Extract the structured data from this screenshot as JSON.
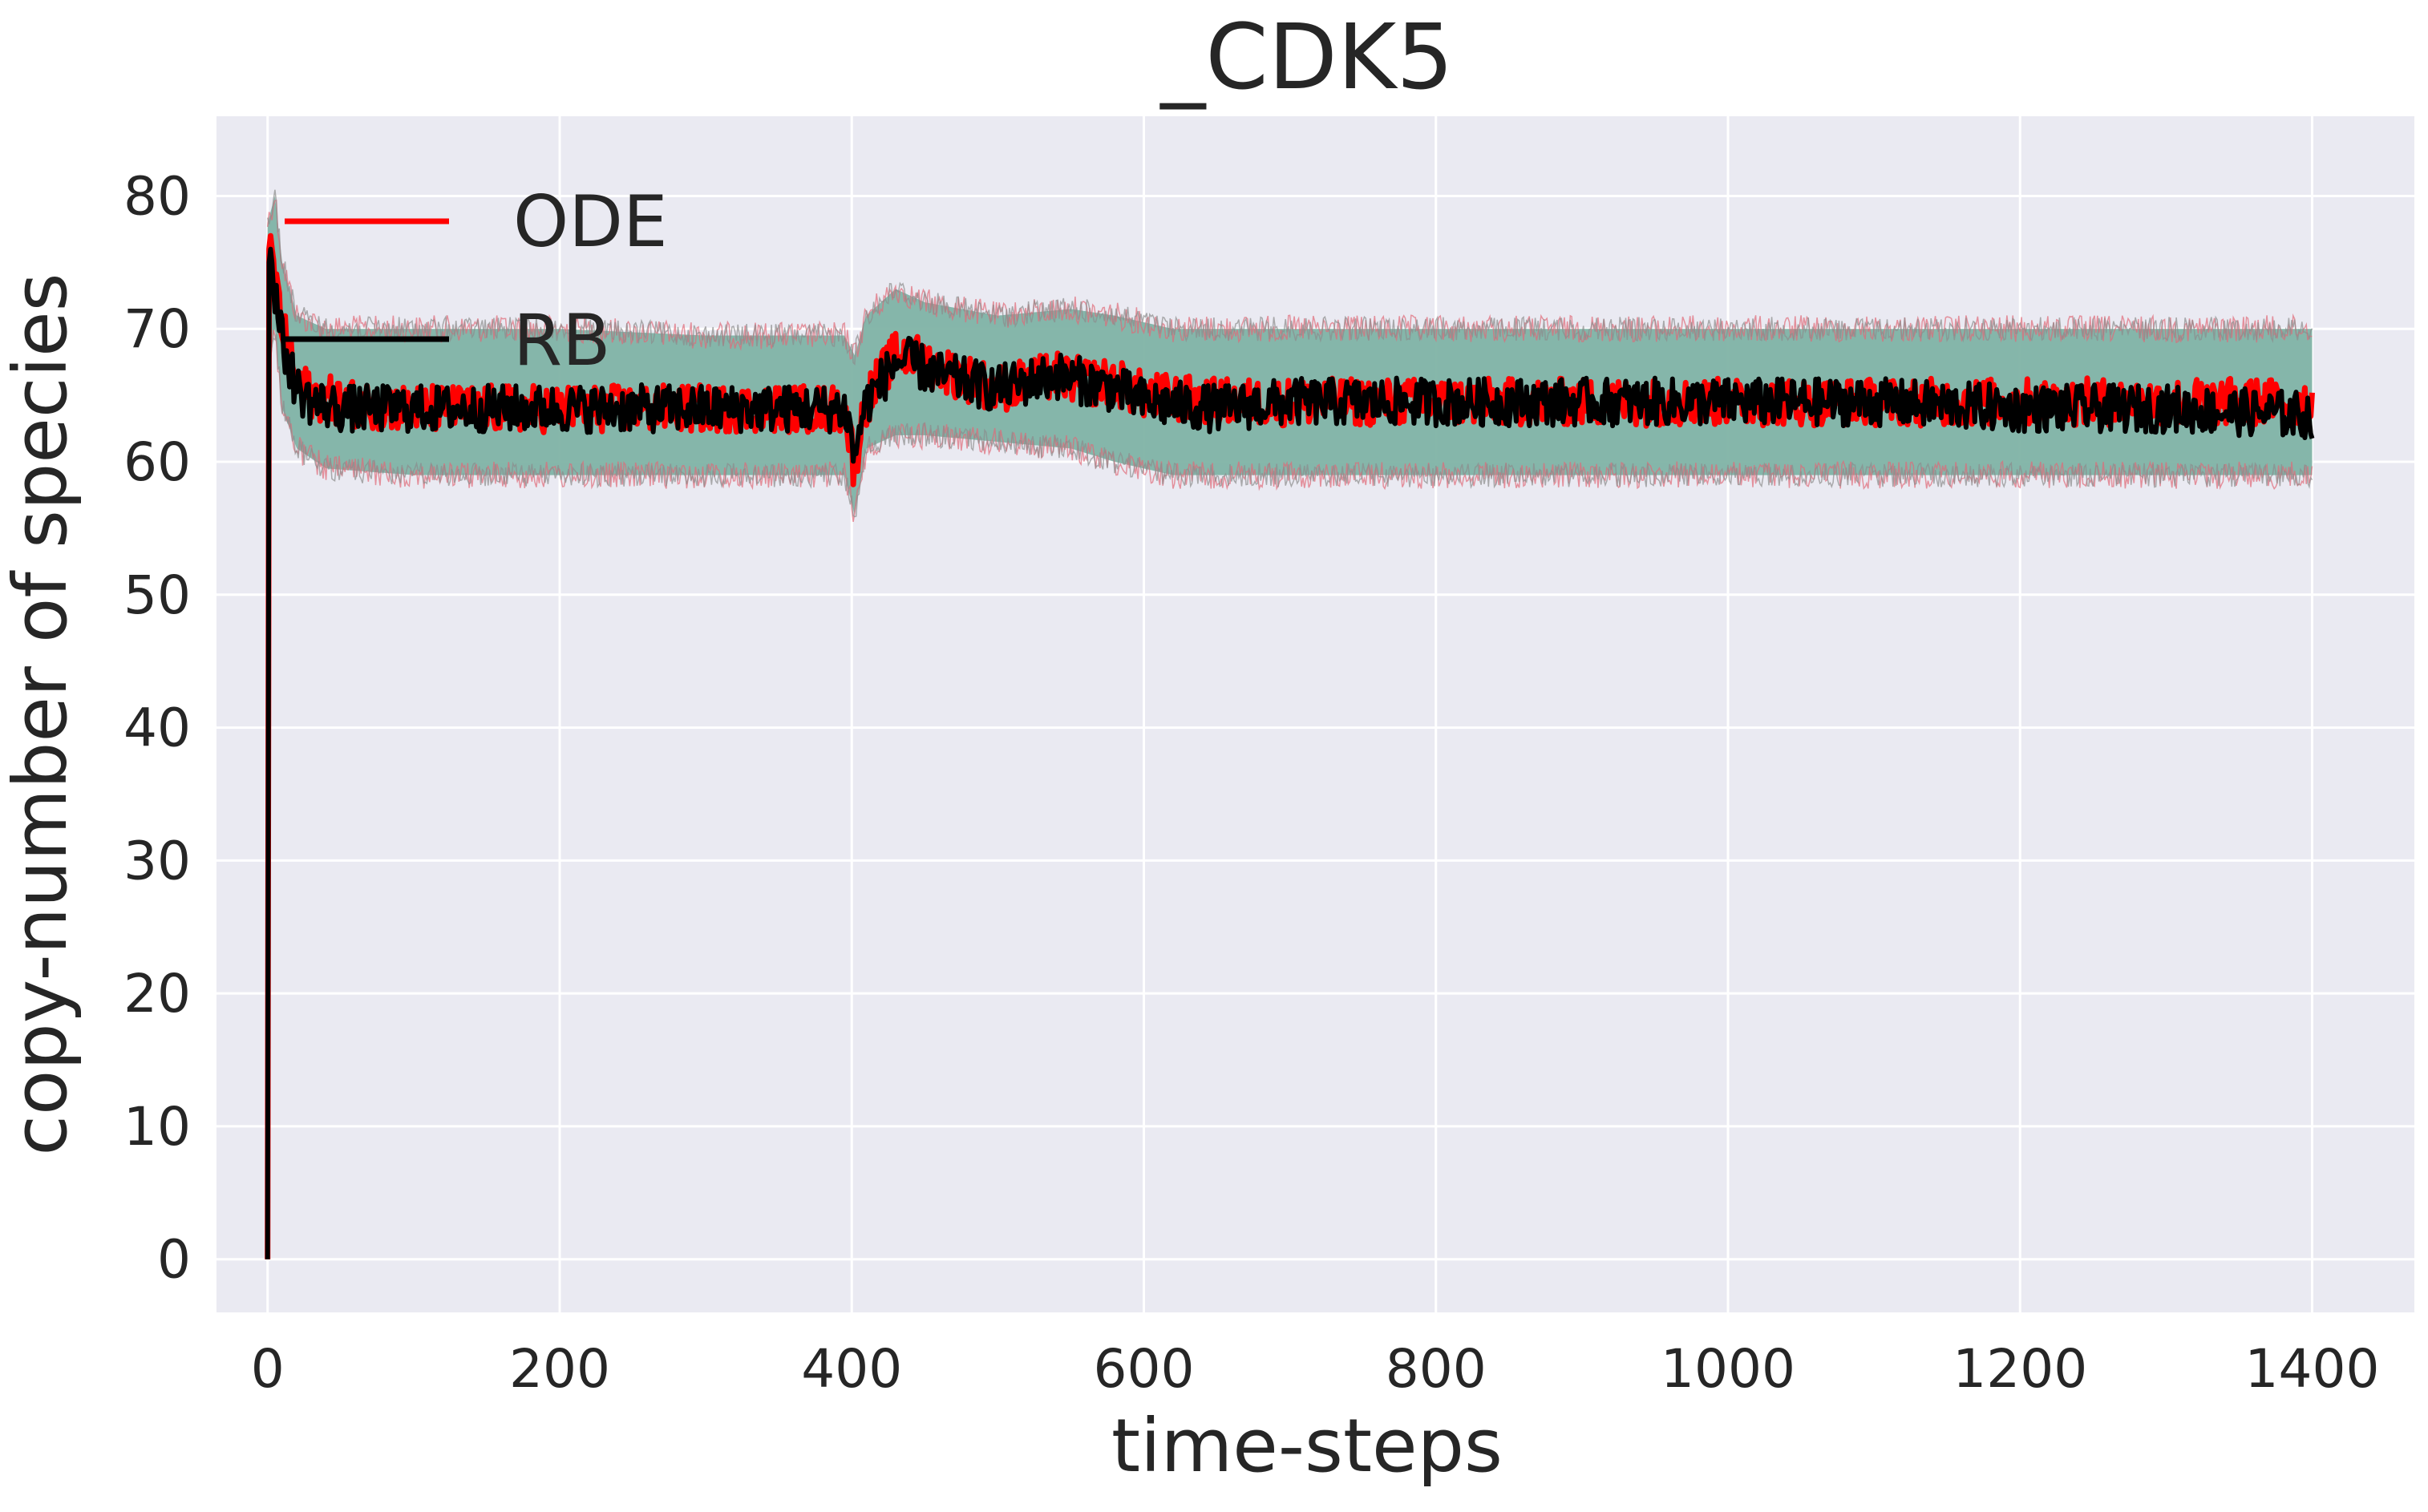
{
  "chart_data": {
    "type": "line",
    "title": "_CDK5",
    "xlabel": "time-steps",
    "ylabel": "copy-number of species",
    "xlim": [
      -35,
      1470
    ],
    "ylim": [
      -4,
      86
    ],
    "xticks": [
      0,
      200,
      400,
      600,
      800,
      1000,
      1200,
      1400
    ],
    "yticks": [
      0,
      10,
      20,
      30,
      40,
      50,
      60,
      70,
      80
    ],
    "grid": true,
    "legend_position": "top-left",
    "colors": {
      "background": "#eaeaf2",
      "grid": "#ffffff",
      "band_fill": "#7fb3a5",
      "band_noise_red": "#e06a78",
      "band_noise_grey": "#8c8c8c",
      "ode": "#ff0000",
      "rb": "#000000"
    },
    "band": {
      "name": "",
      "x": [
        0,
        5,
        10,
        20,
        40,
        100,
        200,
        300,
        395,
        402,
        410,
        430,
        450,
        500,
        550,
        580,
        620,
        700,
        800,
        1000,
        1200,
        1400
      ],
      "upper": [
        78,
        80,
        75,
        71,
        70,
        70,
        70,
        69.5,
        69.5,
        68,
        71,
        73,
        72,
        71,
        71.5,
        71,
        70,
        70,
        70,
        70,
        70,
        70
      ],
      "lower": [
        66,
        70,
        64,
        61,
        59.5,
        59,
        59,
        59,
        59,
        56,
        61,
        62,
        62,
        61.5,
        61,
        60,
        59,
        59,
        59,
        59,
        59,
        59
      ]
    },
    "series": [
      {
        "name": "ODE",
        "x": [
          0,
          1,
          2,
          5,
          10,
          20,
          30,
          50,
          100,
          200,
          300,
          395,
          400,
          402,
          405,
          410,
          420,
          430,
          440,
          460,
          500,
          520,
          540,
          560,
          580,
          600,
          650,
          700,
          800,
          900,
          1000,
          1100,
          1200,
          1300,
          1400
        ],
        "values": [
          0,
          76,
          77,
          74,
          70,
          66,
          65,
          64.5,
          64,
          64,
          64,
          64,
          61,
          59,
          62,
          64.5,
          66.5,
          68,
          68,
          67,
          65.5,
          66,
          66.5,
          66,
          66,
          65,
          64.5,
          64.5,
          64.5,
          64.5,
          64.5,
          64.5,
          64.5,
          64.5,
          64.5
        ]
      },
      {
        "name": "RB",
        "x": [
          0,
          1,
          2,
          5,
          10,
          20,
          30,
          50,
          100,
          200,
          300,
          395,
          400,
          402,
          405,
          410,
          420,
          430,
          440,
          460,
          500,
          520,
          540,
          560,
          580,
          600,
          650,
          700,
          800,
          900,
          1000,
          1100,
          1200,
          1300,
          1400
        ],
        "values": [
          0,
          75,
          76,
          73,
          69,
          65.5,
          64.5,
          64,
          64,
          64,
          64,
          64,
          62,
          60,
          62.5,
          64.5,
          66,
          67.5,
          67.5,
          66.5,
          65.5,
          66,
          66.5,
          66,
          65.5,
          64.5,
          64,
          64.5,
          64.5,
          64.5,
          64.5,
          64.5,
          64,
          64,
          63.5
        ]
      }
    ]
  }
}
